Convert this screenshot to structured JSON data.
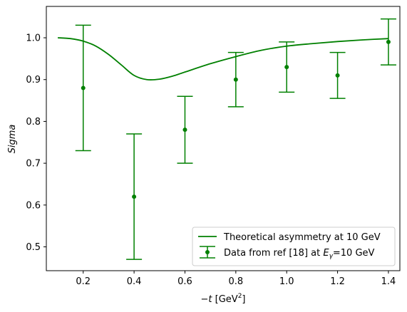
{
  "chart_data": {
    "type": "line",
    "xlabel": "−t [GeV²]",
    "ylabel": "Sigma",
    "xlim": [
      0.055,
      1.445
    ],
    "ylim": [
      0.443,
      1.075
    ],
    "grid": false,
    "legend_position": "lower-right",
    "color": "#008000",
    "x_ticks": [
      "0.2",
      "0.4",
      "0.6",
      "0.8",
      "1.0",
      "1.2",
      "1.4"
    ],
    "x_tick_values": [
      0.2,
      0.4,
      0.6,
      0.8,
      1.0,
      1.2,
      1.4
    ],
    "y_ticks": [
      "0.5",
      "0.6",
      "0.7",
      "0.8",
      "0.9",
      "1.0"
    ],
    "y_tick_values": [
      0.5,
      0.6,
      0.7,
      0.8,
      0.9,
      1.0
    ],
    "series": [
      {
        "name": "Theoretical asymmetry at 10 GeV",
        "kind": "line",
        "x": [
          0.1,
          0.15,
          0.2,
          0.25,
          0.3,
          0.35,
          0.4,
          0.45,
          0.5,
          0.55,
          0.6,
          0.7,
          0.8,
          0.9,
          1.0,
          1.1,
          1.2,
          1.3,
          1.4
        ],
        "y": [
          1.0,
          0.998,
          0.992,
          0.98,
          0.96,
          0.935,
          0.91,
          0.9,
          0.901,
          0.908,
          0.918,
          0.938,
          0.955,
          0.97,
          0.98,
          0.986,
          0.991,
          0.995,
          0.998
        ]
      },
      {
        "name": "Data from ref [18] at Eγ=10 GeV",
        "name_prefix": "Data from ref [18] at ",
        "name_math": "E",
        "name_sub": "γ",
        "name_suffix": "=10 GeV",
        "kind": "errorbar",
        "x": [
          0.2,
          0.4,
          0.6,
          0.8,
          1.0,
          1.2,
          1.4
        ],
        "y": [
          0.88,
          0.62,
          0.78,
          0.9,
          0.93,
          0.91,
          0.99
        ],
        "yerr_low": [
          0.73,
          0.47,
          0.7,
          0.835,
          0.87,
          0.855,
          0.935
        ],
        "yerr_high": [
          1.03,
          0.77,
          0.86,
          0.965,
          0.99,
          0.965,
          1.045
        ]
      }
    ]
  }
}
